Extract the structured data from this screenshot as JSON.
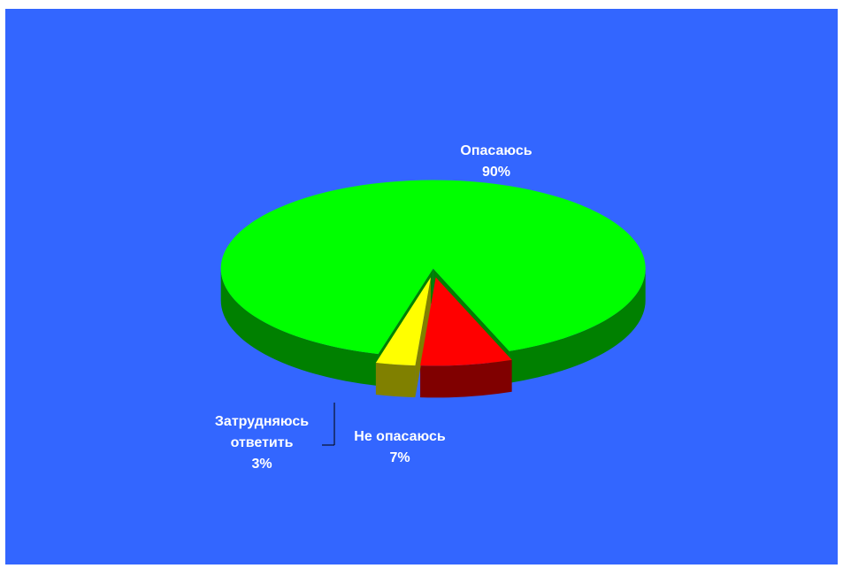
{
  "chart_data": {
    "type": "pie",
    "title": "",
    "background_color": "#3366ff",
    "style": "3d-exploded",
    "slices": [
      {
        "label": "Опасаюсь",
        "value": 90,
        "pct_label": "90%",
        "color": "#00ff00",
        "side_color": "#008000"
      },
      {
        "label": "Не опасаюсь",
        "value": 7,
        "pct_label": "7%",
        "color": "#ff0000",
        "side_color": "#800000"
      },
      {
        "label": "Затрудняюсь ответить",
        "label_lines": [
          "Затрудняюсь",
          "ответить"
        ],
        "value": 3,
        "pct_label": "3%",
        "color": "#ffff00",
        "side_color": "#808000"
      }
    ]
  }
}
